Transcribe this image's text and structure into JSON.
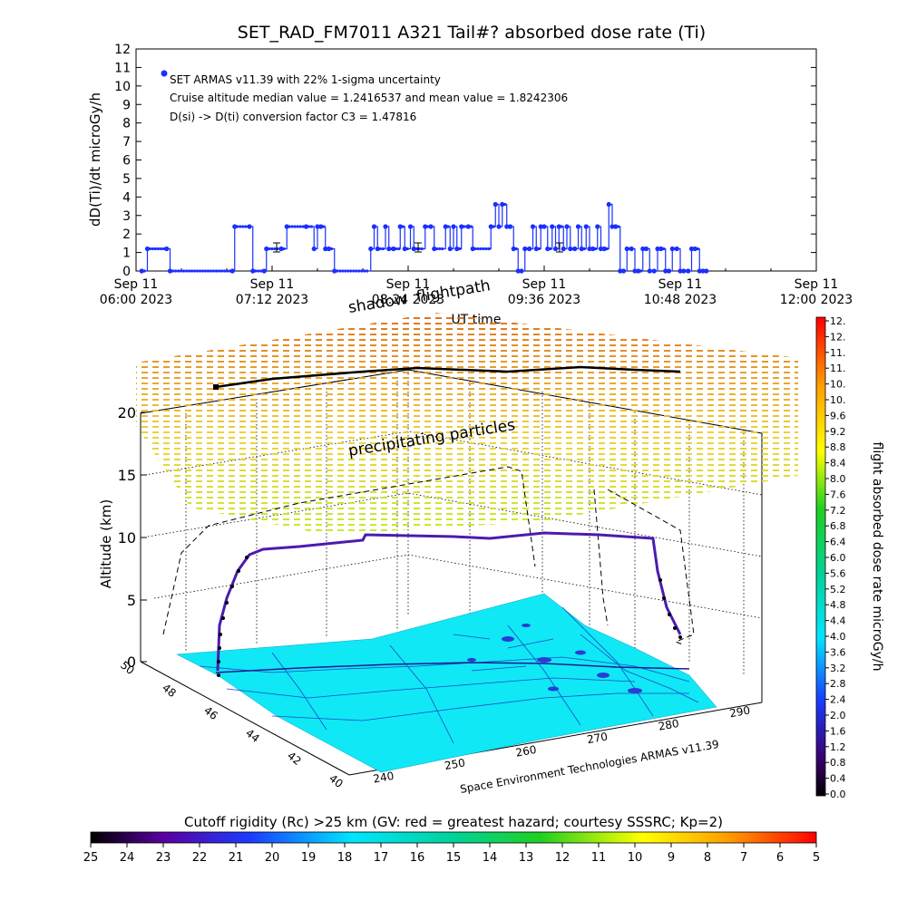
{
  "chart_data": [
    {
      "type": "line",
      "title": "SET_RAD_FM7011  A321 Tail#? absorbed dose rate (Ti)",
      "ylabel": "dD(Ti)/dt microGy/h",
      "xlabel": "UT time",
      "ylim": [
        0,
        12
      ],
      "xlim_hours": [
        6.0,
        12.0
      ],
      "y_ticks": [
        "0",
        "1",
        "2",
        "3",
        "4",
        "5",
        "6",
        "7",
        "8",
        "9",
        "10",
        "11",
        "12"
      ],
      "x_ticks": [
        {
          "line1": "Sep 11",
          "line2": "06:00 2023"
        },
        {
          "line1": "Sep 11",
          "line2": "07:12 2023"
        },
        {
          "line1": "Sep 11",
          "line2": "08:24 2023"
        },
        {
          "line1": "Sep 11",
          "line2": "09:36 2023"
        },
        {
          "line1": "Sep 11",
          "line2": "10:48 2023"
        },
        {
          "line1": "Sep 11",
          "line2": "12:00 2023"
        }
      ],
      "annotations": [
        "SET ARMAS v11.39 with 22% 1-sigma uncertainty",
        "Cruise altitude median value = 1.2416537 and mean value = 1.8242306",
        "D(si) -> D(ti) conversion factor C3 = 1.47816"
      ],
      "series": [
        {
          "color": "#1a2fff",
          "x_hours": [
            6.05,
            6.1,
            6.27,
            6.3,
            6.85,
            6.87,
            7.0,
            7.03,
            7.13,
            7.15,
            7.28,
            7.33,
            7.5,
            7.57,
            7.6,
            7.63,
            7.67,
            7.7,
            7.75,
            8.07,
            8.1,
            8.13,
            8.2,
            8.23,
            8.27,
            8.33,
            8.37,
            8.42,
            8.45,
            8.55,
            8.6,
            8.63,
            8.73,
            8.77,
            8.8,
            8.83,
            8.87,
            8.93,
            8.97,
            9.13,
            9.17,
            9.2,
            9.23,
            9.27,
            9.3,
            9.33,
            9.37,
            9.4,
            9.43,
            9.47,
            9.5,
            9.53,
            9.57,
            9.6,
            9.63,
            9.67,
            9.7,
            9.73,
            9.77,
            9.8,
            9.83,
            9.87,
            9.9,
            9.93,
            9.97,
            10.0,
            10.03,
            10.07,
            10.1,
            10.13,
            10.17,
            10.2,
            10.23,
            10.27,
            10.3,
            10.33,
            10.37,
            10.4,
            10.43,
            10.47,
            10.5,
            10.53,
            10.57,
            10.6,
            10.63,
            10.67,
            10.7,
            10.73,
            10.77,
            10.8,
            10.83,
            10.87,
            10.9,
            10.93,
            10.97,
            11.0,
            11.03
          ],
          "values": [
            0.0,
            1.2,
            1.2,
            0.0,
            0.0,
            2.4,
            2.4,
            0.0,
            0.0,
            1.2,
            1.2,
            2.4,
            2.4,
            1.2,
            2.4,
            2.4,
            1.2,
            1.2,
            0.0,
            1.2,
            2.4,
            1.2,
            2.4,
            1.2,
            1.2,
            2.4,
            1.2,
            2.4,
            1.2,
            2.4,
            2.4,
            1.2,
            2.4,
            1.2,
            2.4,
            1.2,
            2.4,
            2.4,
            1.2,
            2.4,
            3.6,
            2.4,
            3.6,
            2.4,
            2.4,
            1.2,
            0.0,
            0.0,
            1.2,
            1.2,
            2.4,
            1.2,
            2.4,
            2.4,
            1.2,
            2.4,
            1.2,
            2.4,
            1.2,
            2.4,
            1.2,
            1.2,
            2.4,
            1.2,
            2.4,
            1.2,
            1.2,
            2.4,
            1.2,
            1.2,
            3.6,
            2.4,
            2.4,
            0.0,
            0.0,
            1.2,
            1.2,
            0.0,
            0.0,
            1.2,
            1.2,
            0.0,
            0.0,
            1.2,
            1.2,
            0.0,
            0.0,
            1.2,
            1.2,
            0.0,
            0.0,
            0.0,
            1.2,
            1.2,
            0.0,
            0.0,
            0.0
          ]
        }
      ]
    },
    {
      "type": "3d-scatter",
      "labels": [
        "shadow",
        "flightpath",
        "precipitating particles"
      ],
      "zlabel": "Altitude (km)",
      "z_ticks": [
        "0",
        "5",
        "10",
        "15",
        "20"
      ],
      "lat_ticks": [
        "50",
        "48",
        "46",
        "44",
        "42",
        "40"
      ],
      "lon_ticks": [
        "240",
        "250",
        "260",
        "270",
        "280",
        "290"
      ],
      "credit": "Space Environment Technologies ARMAS v11.39"
    },
    {
      "type": "colorbar",
      "ylabel": "flight absorbed dose rate microGy/h",
      "ticks": [
        "0.0",
        "0.4",
        "0.8",
        "1.2",
        "1.6",
        "2.0",
        "2.4",
        "2.8",
        "3.2",
        "3.6",
        "4.0",
        "4.4",
        "4.8",
        "5.2",
        "5.6",
        "6.0",
        "6.4",
        "6.8",
        "7.2",
        "7.6",
        "8.0",
        "8.4",
        "8.8",
        "9.2",
        "9.6",
        "10.",
        "10.",
        "11.",
        "11.",
        "12.",
        "12."
      ]
    },
    {
      "type": "colorbar",
      "title": "Cutoff rigidity (Rc) >25 km (GV: red = greatest hazard; courtesy SSSRC; Kp=2)",
      "ticks": [
        "25",
        "24",
        "23",
        "22",
        "21",
        "20",
        "19",
        "18",
        "17",
        "16",
        "15",
        "14",
        "13",
        "12",
        "11",
        "10",
        "9",
        "8",
        "7",
        "6",
        "5"
      ]
    }
  ]
}
